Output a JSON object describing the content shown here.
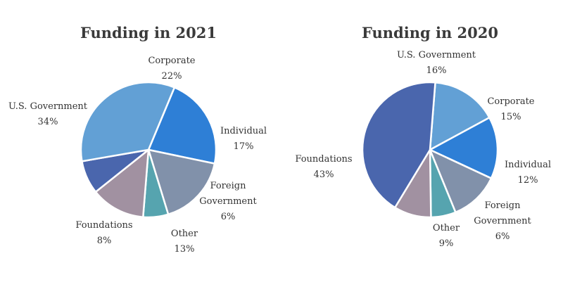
{
  "chart_data": [
    {
      "type": "pie",
      "title": "Funding in 2021",
      "slices": [
        {
          "label": "Corporate",
          "label_lines": [
            "Corporate"
          ],
          "value": 22,
          "value_label": "22%",
          "color": "#2e7fd6"
        },
        {
          "label": "Individual",
          "label_lines": [
            "Individual"
          ],
          "value": 17,
          "value_label": "17%",
          "color": "#8191aa"
        },
        {
          "label": "Foreign Government",
          "label_lines": [
            "Foreign",
            "Government"
          ],
          "value": 6,
          "value_label": "6%",
          "color": "#56a4af"
        },
        {
          "label": "Other",
          "label_lines": [
            "Other"
          ],
          "value": 13,
          "value_label": "13%",
          "color": "#a191a1"
        },
        {
          "label": "Foundations",
          "label_lines": [
            "Foundations"
          ],
          "value": 8,
          "value_label": "8%",
          "color": "#4a66ad"
        },
        {
          "label": "U.S. Government",
          "label_lines": [
            "U.S. Government"
          ],
          "value": 34,
          "value_label": "34%",
          "color": "#62a0d5"
        }
      ]
    },
    {
      "type": "pie",
      "title": "Funding in 2020",
      "slices": [
        {
          "label": "U.S. Government",
          "label_lines": [
            "U.S. Government"
          ],
          "value": 16,
          "value_label": "16%",
          "color": "#62a0d5"
        },
        {
          "label": "Corporate",
          "label_lines": [
            "Corporate"
          ],
          "value": 15,
          "value_label": "15%",
          "color": "#2e7fd6"
        },
        {
          "label": "Individual",
          "label_lines": [
            "Individual"
          ],
          "value": 12,
          "value_label": "12%",
          "color": "#8191aa"
        },
        {
          "label": "Foreign Government",
          "label_lines": [
            "Foreign",
            "Government"
          ],
          "value": 6,
          "value_label": "6%",
          "color": "#56a4af"
        },
        {
          "label": "Other",
          "label_lines": [
            "Other"
          ],
          "value": 9,
          "value_label": "9%",
          "color": "#a191a1"
        },
        {
          "label": "Foundations",
          "label_lines": [
            "Foundations"
          ],
          "value": 43,
          "value_label": "43%",
          "color": "#4a66ad"
        }
      ]
    }
  ]
}
